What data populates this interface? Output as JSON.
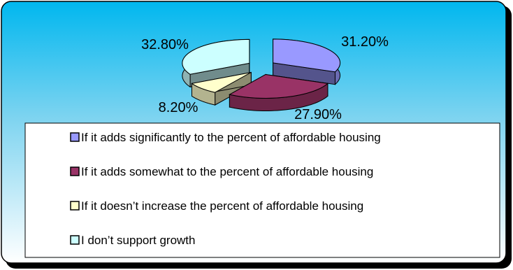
{
  "chart_data": {
    "type": "pie",
    "title": "",
    "legend_position": "bottom",
    "style": "3d-exploded",
    "slices": [
      {
        "label": "If it adds significantly to the percent of affordable housing",
        "value": 31.2,
        "value_label": "31.20%",
        "color": "#9999FF"
      },
      {
        "label": "If it adds somewhat to the percent of affordable housing",
        "value": 27.9,
        "value_label": "27.90%",
        "color": "#993366"
      },
      {
        "label": "If it doesn’t increase the percent of affordable housing",
        "value": 8.2,
        "value_label": "8.20%",
        "color": "#FFFFCC"
      },
      {
        "label": "I don’t support growth",
        "value": 32.8,
        "value_label": "32.80%",
        "color": "#CCFFFF"
      }
    ]
  },
  "colors": {
    "background_top": "#00B7EF",
    "background_bottom": "#FFFFFF",
    "legend_bg": "#FFFFFF",
    "border": "#000000"
  }
}
